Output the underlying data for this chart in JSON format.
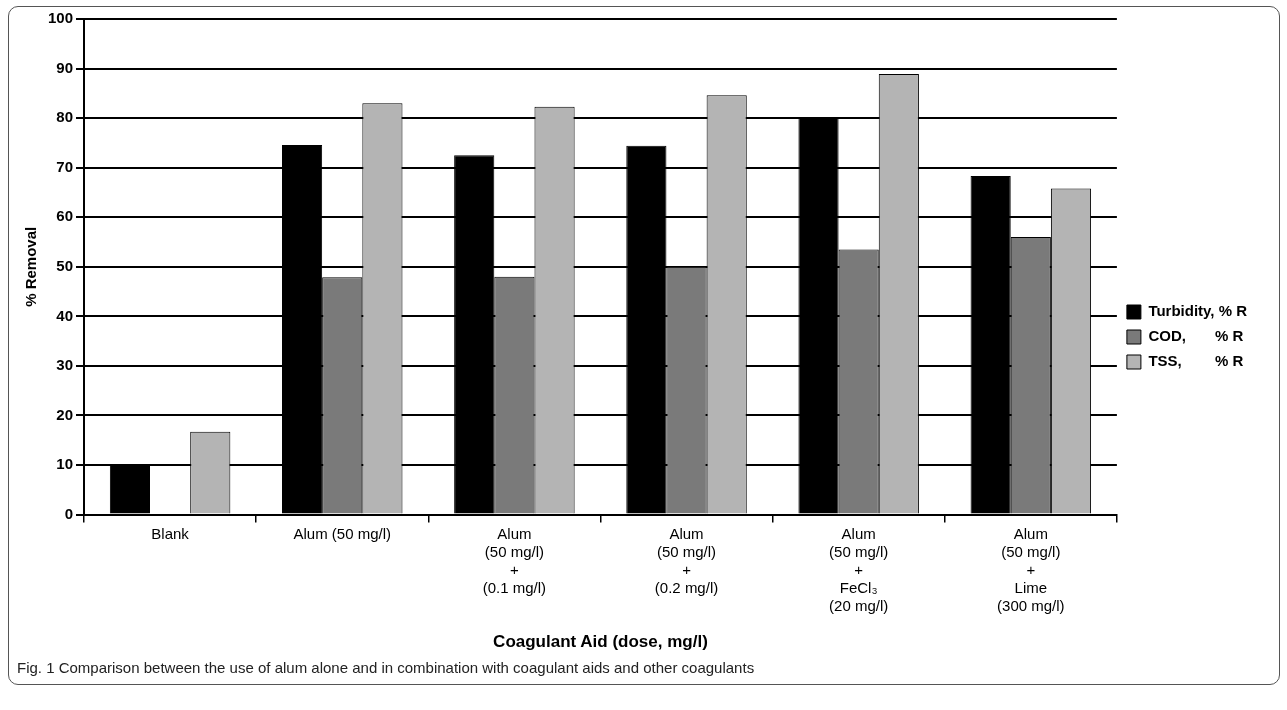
{
  "chart_data": {
    "type": "bar",
    "xlabel": "Coagulant Aid (dose, mg/l)",
    "ylabel": "% Removal",
    "categories": [
      "Blank",
      "Alum (50 mg/l)",
      "Alum\n(50 mg/l)\n+\n(0.1 mg/l)",
      "Alum\n(50 mg/l)\n+\n(0.2 mg/l)",
      "Alum\n(50 mg/l)\n+\nFeCl₃\n(20 mg/l)",
      "Alum\n(50 mg/l)\n+\nLime\n(300 mg/l)"
    ],
    "series": [
      {
        "name": "Turbidity, % R",
        "color": "#000000",
        "values": [
          10,
          74.6,
          72.5,
          74.4,
          80,
          68.3
        ]
      },
      {
        "name": "COD,       % R",
        "color": "#7a7a7a",
        "values": [
          null,
          47.9,
          48,
          50,
          53.5,
          56
        ]
      },
      {
        "name": "TSS,        % R",
        "color": "#b4b4b4",
        "values": [
          16.7,
          83,
          82.3,
          84.6,
          88.9,
          65.8
        ]
      }
    ],
    "ylim": [
      0,
      100
    ],
    "yticks": [
      0,
      10,
      20,
      30,
      40,
      50,
      60,
      70,
      80,
      90,
      100
    ],
    "grid": "y",
    "legend": "right",
    "annotations": [
      "Fig. 1 Comparison between the use of alum alone and in combination with coagulant aids and other coagulants"
    ]
  }
}
